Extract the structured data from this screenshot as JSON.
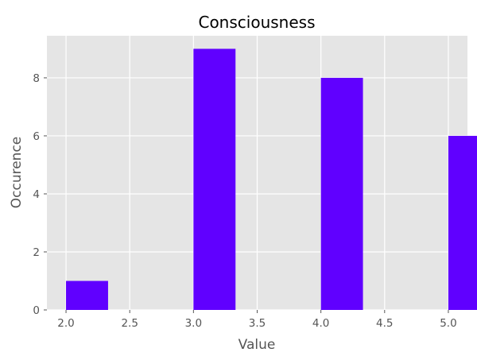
{
  "chart_data": {
    "type": "bar",
    "title": "Consciousness",
    "xlabel": "Value",
    "ylabel": "Occurence",
    "xlim": [
      1.85,
      5.15
    ],
    "ylim": [
      0,
      9.45
    ],
    "xticks": [
      "2.0",
      "2.5",
      "3.0",
      "3.5",
      "4.0",
      "4.5",
      "5.0"
    ],
    "yticks": [
      "0",
      "2",
      "4",
      "6",
      "8"
    ],
    "bar_width": 0.33,
    "bars": [
      {
        "x_start": 2.0,
        "value": 1
      },
      {
        "x_start": 3.0,
        "value": 9
      },
      {
        "x_start": 4.0,
        "value": 8
      },
      {
        "x_start": 5.0,
        "value": 6
      }
    ],
    "bar_color": "#6000ff",
    "background_color": "#e5e5e5",
    "grid": true
  }
}
